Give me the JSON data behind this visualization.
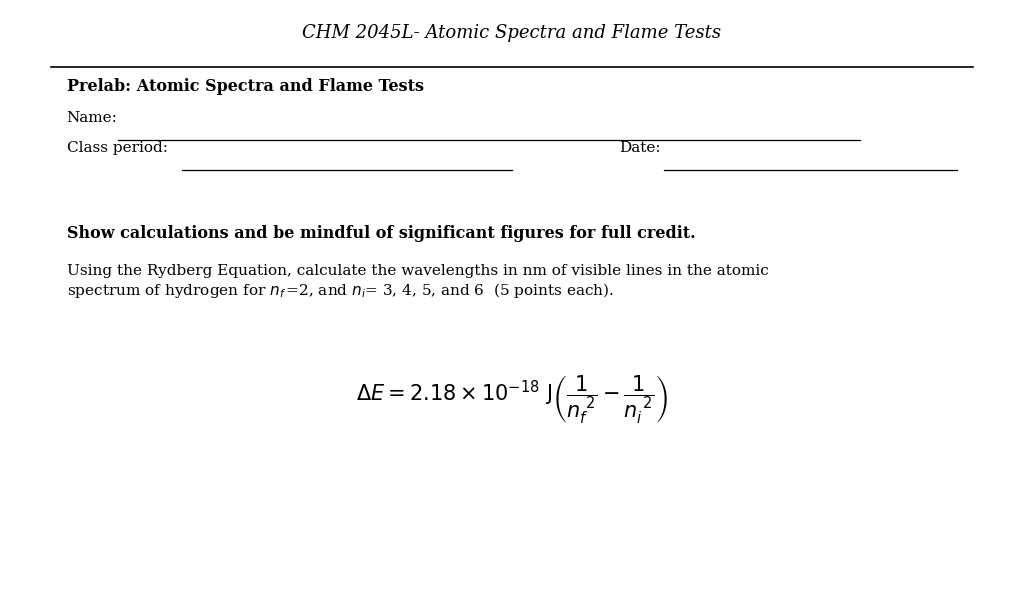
{
  "background_color": "#ffffff",
  "header_title": "CHM 2045L- Atomic Spectra and Flame Tests",
  "prelab_title": "Prelab: Atomic Spectra and Flame Tests",
  "name_label": "Name:",
  "class_period_label": "Class period:",
  "date_label": "Date:",
  "bold_instruction": "Show calculations and be mindful of significant figures for full credit.",
  "body_text_line1": "Using the Rydberg Equation, calculate the wavelengths in nm of visible lines in the atomic",
  "fig_width": 10.24,
  "fig_height": 6.05,
  "dpi": 100
}
